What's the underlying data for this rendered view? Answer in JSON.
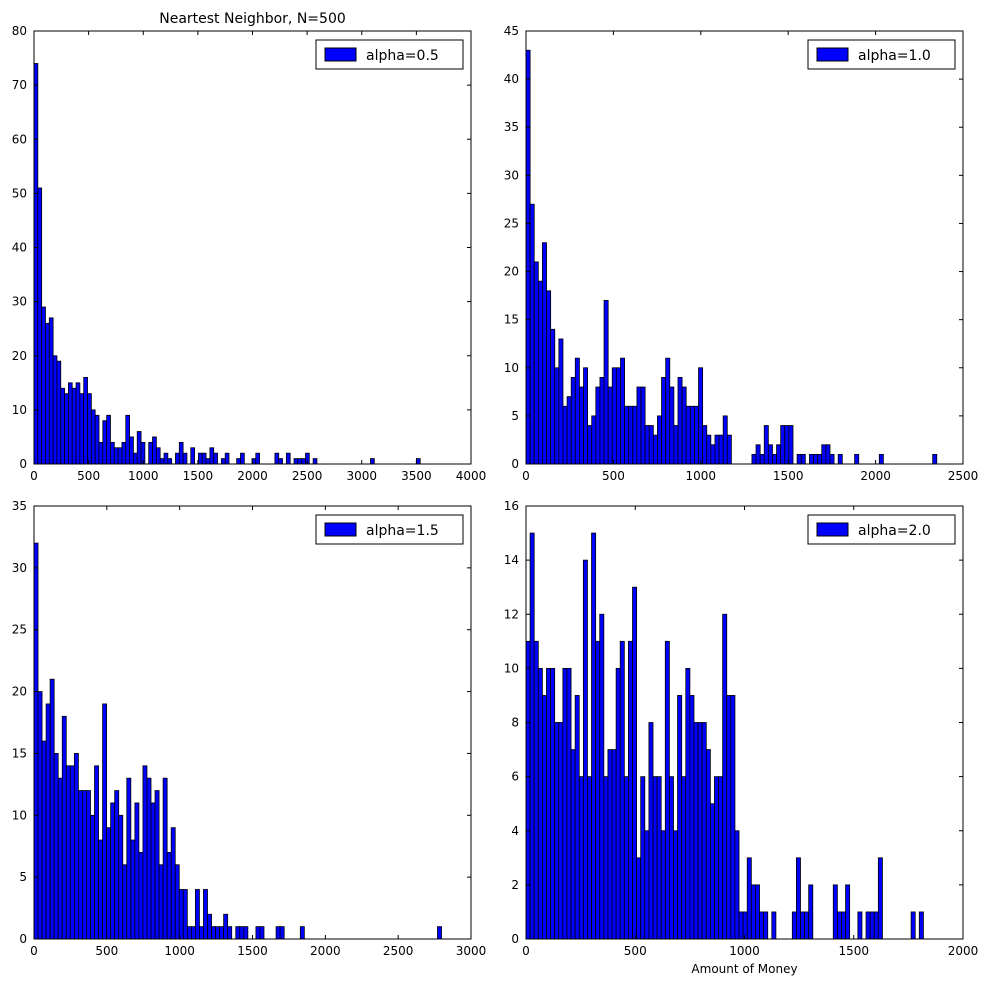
{
  "figure": {
    "suptitle": ""
  },
  "chart_data": [
    {
      "type": "bar",
      "title": "Neartest Neighbor, N=500",
      "xlabel": "",
      "ylabel": "",
      "xlim": [
        0,
        4000
      ],
      "ylim": [
        0,
        80
      ],
      "xticks": [
        0,
        500,
        1000,
        1500,
        2000,
        2500,
        3000,
        3500,
        4000
      ],
      "yticks": [
        0,
        10,
        20,
        30,
        40,
        50,
        60,
        70,
        80
      ],
      "bin_width": 35,
      "bar_color": "#0000ff",
      "legend": {
        "location": "top-right",
        "label": "alpha=0.5"
      },
      "series": [
        {
          "name": "alpha=0.5",
          "x": [
            0,
            35,
            70,
            105,
            140,
            175,
            210,
            245,
            280,
            315,
            350,
            385,
            420,
            455,
            490,
            525,
            560,
            595,
            630,
            665,
            700,
            735,
            770,
            805,
            840,
            875,
            910,
            945,
            980,
            1015,
            1050,
            1085,
            1120,
            1155,
            1190,
            1225,
            1260,
            1295,
            1330,
            1365,
            1400,
            1435,
            1470,
            1505,
            1540,
            1575,
            1610,
            1645,
            1680,
            1715,
            1750,
            1785,
            1820,
            1855,
            1890,
            1925,
            1960,
            1995,
            2030,
            2065,
            2100,
            2135,
            2170,
            2205,
            2240,
            2275,
            2310,
            2345,
            2380,
            2415,
            2450,
            2485,
            2520,
            2555,
            3080,
            3500
          ],
          "values": [
            74,
            51,
            29,
            26,
            27,
            20,
            19,
            14,
            13,
            15,
            14,
            15,
            13,
            16,
            13,
            10,
            9,
            4,
            8,
            9,
            4,
            3,
            3,
            4,
            9,
            5,
            2,
            6,
            4,
            0,
            4,
            5,
            3,
            1,
            2,
            1,
            0,
            2,
            4,
            2,
            0,
            3,
            0,
            2,
            2,
            1,
            3,
            2,
            0,
            1,
            2,
            0,
            0,
            1,
            2,
            0,
            0,
            1,
            2,
            0,
            0,
            0,
            0,
            2,
            1,
            0,
            2,
            0,
            1,
            1,
            1,
            2,
            0,
            1,
            1,
            1
          ]
        }
      ]
    },
    {
      "type": "bar",
      "title": "",
      "xlabel": "",
      "ylabel": "",
      "xlim": [
        0,
        2500
      ],
      "ylim": [
        0,
        45
      ],
      "xticks": [
        0,
        500,
        1000,
        1500,
        2000,
        2500
      ],
      "yticks": [
        0,
        5,
        10,
        15,
        20,
        25,
        30,
        35,
        40,
        45
      ],
      "bin_width": 23.5,
      "bar_color": "#0000ff",
      "legend": {
        "location": "top-right",
        "label": "alpha=1.0"
      },
      "series": [
        {
          "name": "alpha=1.0",
          "x": [
            0,
            23.5,
            47,
            70.5,
            94,
            117.5,
            141,
            164.5,
            188,
            211.5,
            235,
            258.5,
            282,
            305.5,
            329,
            352.5,
            376,
            399.5,
            423,
            446.5,
            470,
            493.5,
            517,
            540.5,
            564,
            587.5,
            611,
            634.5,
            658,
            681.5,
            705,
            728.5,
            752,
            775.5,
            799,
            822.5,
            846,
            869.5,
            893,
            916.5,
            940,
            963.5,
            987,
            1010.5,
            1034,
            1057.5,
            1081,
            1104.5,
            1128,
            1151.5,
            1175,
            1198.5,
            1222,
            1245.5,
            1269,
            1292.5,
            1316,
            1339.5,
            1363,
            1386.5,
            1410,
            1433.5,
            1457,
            1480.5,
            1504,
            1527.5,
            1551,
            1574.5,
            1598,
            1621.5,
            1645,
            1668.5,
            1692,
            1715.5,
            1739,
            1762.5,
            1786,
            1809.5,
            1833,
            1856.5,
            1880,
            1903.5,
            1927,
            1950.5,
            1974,
            1997.5,
            2021,
            2044.5,
            2068,
            2091.5,
            2115,
            2138.5,
            2162,
            2185.5,
            2209,
            2232.5,
            2256,
            2279.5,
            2303,
            2326.5
          ],
          "values": [
            43,
            27,
            21,
            19,
            23,
            18,
            14,
            10,
            13,
            6,
            7,
            9,
            11,
            8,
            10,
            4,
            5,
            8,
            9,
            17,
            8,
            10,
            10,
            11,
            6,
            6,
            6,
            8,
            8,
            4,
            4,
            3,
            5,
            9,
            11,
            8,
            4,
            9,
            8,
            6,
            6,
            6,
            10,
            4,
            3,
            2,
            3,
            3,
            5,
            3,
            0,
            0,
            0,
            0,
            0,
            1,
            2,
            1,
            4,
            2,
            1,
            2,
            4,
            4,
            4,
            0,
            1,
            1,
            0,
            1,
            1,
            1,
            2,
            2,
            1,
            0,
            1,
            0,
            0,
            0,
            1,
            0,
            0,
            0,
            0,
            0,
            1,
            0,
            0,
            0,
            0,
            0,
            0,
            0,
            0,
            0,
            0,
            0,
            0,
            1
          ]
        }
      ]
    },
    {
      "type": "bar",
      "title": "",
      "xlabel": "",
      "ylabel": "",
      "xlim": [
        0,
        3000
      ],
      "ylim": [
        0,
        35
      ],
      "xticks": [
        0,
        500,
        1000,
        1500,
        2000,
        2500,
        3000
      ],
      "yticks": [
        0,
        5,
        10,
        15,
        20,
        25,
        30,
        35
      ],
      "bin_width": 27.7,
      "bar_color": "#0000ff",
      "legend": {
        "location": "top-right",
        "label": "alpha=1.5"
      },
      "series": [
        {
          "name": "alpha=1.5",
          "x": [
            0,
            27.7,
            55.4,
            83.1,
            110.8,
            138.5,
            166.2,
            193.9,
            221.6,
            249.3,
            277,
            304.7,
            332.4,
            360.1,
            387.8,
            415.5,
            443.2,
            470.9,
            498.6,
            526.3,
            554,
            581.7,
            609.4,
            637.1,
            664.8,
            692.5,
            720.2,
            747.9,
            775.6,
            803.3,
            831,
            858.7,
            886.4,
            914.1,
            941.8,
            969.5,
            997.2,
            1024.9,
            1052.6,
            1080.3,
            1108,
            1135.7,
            1163.4,
            1191.1,
            1218.8,
            1246.5,
            1274.2,
            1301.9,
            1329.6,
            1357.3,
            1385,
            1412.7,
            1440.4,
            1468.1,
            1495.8,
            1523.5,
            1551.2,
            1578.9,
            1606.6,
            1634.3,
            1662,
            1689.7,
            1717.4,
            1745.1,
            1772.8,
            1800.5,
            1828.2,
            1855.9,
            1883.6,
            1911.3,
            1939,
            2770
          ],
          "values": [
            32,
            20,
            16,
            19,
            21,
            15,
            13,
            18,
            14,
            14,
            15,
            12,
            12,
            12,
            10,
            14,
            8,
            19,
            9,
            11,
            12,
            10,
            6,
            13,
            8,
            11,
            7,
            14,
            13,
            11,
            12,
            6,
            13,
            7,
            9,
            6,
            4,
            4,
            1,
            1,
            4,
            1,
            4,
            2,
            1,
            1,
            1,
            2,
            1,
            0,
            1,
            1,
            1,
            0,
            0,
            1,
            1,
            0,
            0,
            0,
            1,
            1,
            0,
            0,
            0,
            0,
            1,
            0,
            0,
            0,
            0,
            1
          ]
        }
      ]
    },
    {
      "type": "bar",
      "title": "",
      "xlabel": "Amount of Money",
      "ylabel": "",
      "xlim": [
        0,
        2000
      ],
      "ylim": [
        0,
        16
      ],
      "xticks": [
        0,
        500,
        1000,
        1500,
        2000
      ],
      "yticks": [
        0,
        2,
        4,
        6,
        8,
        10,
        12,
        14,
        16
      ],
      "bin_width": 18.75,
      "bar_color": "#0000ff",
      "legend": {
        "location": "top-right",
        "label": "alpha=2.0"
      },
      "series": [
        {
          "name": "alpha=2.0",
          "x": [
            0,
            18.75,
            37.5,
            56.25,
            75,
            93.75,
            112.5,
            131.25,
            150,
            168.75,
            187.5,
            206.25,
            225,
            243.75,
            262.5,
            281.25,
            300,
            318.75,
            337.5,
            356.25,
            375,
            393.75,
            412.5,
            431.25,
            450,
            468.75,
            487.5,
            506.25,
            525,
            543.75,
            562.5,
            581.25,
            600,
            618.75,
            637.5,
            656.25,
            675,
            693.75,
            712.5,
            731.25,
            750,
            768.75,
            787.5,
            806.25,
            825,
            843.75,
            862.5,
            881.25,
            900,
            918.75,
            937.5,
            956.25,
            975,
            993.75,
            1012.5,
            1031.25,
            1050,
            1068.75,
            1087.5,
            1106.25,
            1125,
            1143.75,
            1162.5,
            1181.25,
            1200,
            1218.75,
            1237.5,
            1256.25,
            1275,
            1293.75,
            1312.5,
            1331.25,
            1350,
            1368.75,
            1387.5,
            1406.25,
            1425,
            1443.75,
            1462.5,
            1481.25,
            1500,
            1518.75,
            1537.5,
            1556.25,
            1575,
            1593.75,
            1612.5,
            1631.25,
            1650,
            1668.75,
            1687.5,
            1706.25,
            1725,
            1743.75,
            1762.5,
            1781.25,
            1800
          ],
          "values": [
            11,
            15,
            11,
            10,
            9,
            10,
            10,
            8,
            8,
            10,
            10,
            7,
            9,
            6,
            14,
            6,
            15,
            11,
            12,
            6,
            7,
            7,
            10,
            11,
            6,
            11,
            13,
            3,
            6,
            4,
            8,
            6,
            6,
            4,
            11,
            6,
            4,
            9,
            6,
            10,
            9,
            8,
            8,
            8,
            7,
            5,
            6,
            6,
            12,
            9,
            9,
            4,
            1,
            1,
            3,
            2,
            2,
            1,
            1,
            0,
            1,
            0,
            0,
            0,
            0,
            1,
            3,
            1,
            1,
            2,
            0,
            0,
            0,
            0,
            0,
            2,
            1,
            1,
            2,
            0,
            0,
            1,
            0,
            1,
            1,
            1,
            3,
            0,
            0,
            0,
            0,
            0,
            0,
            0,
            1,
            0,
            1
          ]
        }
      ]
    }
  ]
}
